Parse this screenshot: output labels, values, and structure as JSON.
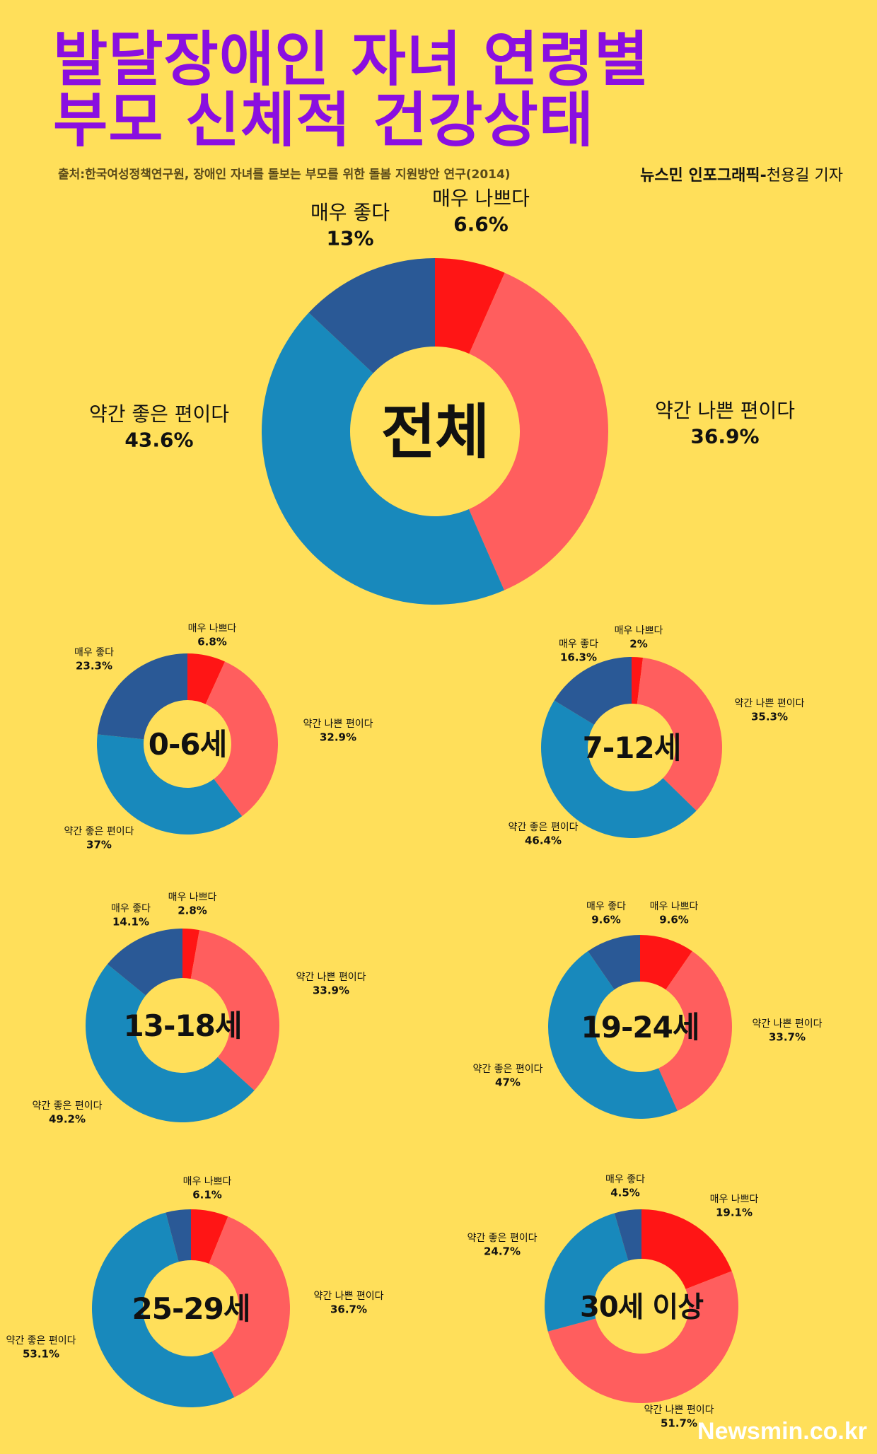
{
  "header": {
    "title_line1": "발달장애인 자녀 연령별",
    "title_line2": "부모 신체적 건강상태",
    "source": "출처:한국여성정책연구원, 장애인 자녀를 돌보는 부모를 위한 돌봄 지원방안 연구(2014)",
    "byline_org": "뉴스민 인포그래픽-",
    "byline_author": "천용길 기자"
  },
  "watermark": "Newsmin.co.kr",
  "colors": {
    "매우 나쁘다": "#FF1515",
    "약간 나쁜 편이다": "#FF5E5E",
    "약간 좋은 편이다": "#1889BC",
    "매우 좋다": "#2A5996",
    "background": "#FFDF5A",
    "title": "#8A0FE0"
  },
  "chart_data": [
    {
      "type": "pie",
      "center_label": "전체",
      "slices": [
        {
          "label": "매우 나쁘다",
          "value": 6.6,
          "display": "6.6%"
        },
        {
          "label": "약간 나쁜 편이다",
          "value": 36.9,
          "display": "36.9%"
        },
        {
          "label": "약간 좋은 편이다",
          "value": 43.6,
          "display": "43.6%"
        },
        {
          "label": "매우 좋다",
          "value": 13,
          "display": "13%"
        }
      ]
    },
    {
      "type": "pie",
      "center_label": "0-6세",
      "slices": [
        {
          "label": "매우 나쁘다",
          "value": 6.8,
          "display": "6.8%"
        },
        {
          "label": "약간 나쁜 편이다",
          "value": 32.9,
          "display": "32.9%"
        },
        {
          "label": "약간 좋은 편이다",
          "value": 37,
          "display": "37%"
        },
        {
          "label": "매우 좋다",
          "value": 23.3,
          "display": "23.3%"
        }
      ]
    },
    {
      "type": "pie",
      "center_label": "7-12세",
      "slices": [
        {
          "label": "매우 나쁘다",
          "value": 2,
          "display": "2%"
        },
        {
          "label": "약간 나쁜 편이다",
          "value": 35.3,
          "display": "35.3%"
        },
        {
          "label": "약간 좋은 편이다",
          "value": 46.4,
          "display": "46.4%"
        },
        {
          "label": "매우 좋다",
          "value": 16.3,
          "display": "16.3%"
        }
      ]
    },
    {
      "type": "pie",
      "center_label": "13-18세",
      "slices": [
        {
          "label": "매우 나쁘다",
          "value": 2.8,
          "display": "2.8%"
        },
        {
          "label": "약간 나쁜 편이다",
          "value": 33.9,
          "display": "33.9%"
        },
        {
          "label": "약간 좋은 편이다",
          "value": 49.2,
          "display": "49.2%"
        },
        {
          "label": "매우 좋다",
          "value": 14.1,
          "display": "14.1%"
        }
      ]
    },
    {
      "type": "pie",
      "center_label": "19-24세",
      "slices": [
        {
          "label": "매우 나쁘다",
          "value": 9.6,
          "display": "9.6%"
        },
        {
          "label": "약간 나쁜 편이다",
          "value": 33.7,
          "display": "33.7%"
        },
        {
          "label": "약간 좋은 편이다",
          "value": 47,
          "display": "47%"
        },
        {
          "label": "매우 좋다",
          "value": 9.6,
          "display": "9.6%"
        }
      ]
    },
    {
      "type": "pie",
      "center_label": "25-29세",
      "slices": [
        {
          "label": "매우 나쁘다",
          "value": 6.1,
          "display": "6.1%"
        },
        {
          "label": "약간 나쁜 편이다",
          "value": 36.7,
          "display": "36.7%"
        },
        {
          "label": "약간 좋은 편이다",
          "value": 53.1,
          "display": "53.1%"
        },
        {
          "label": "매우 좋다",
          "value": 4.1,
          "display": ""
        }
      ]
    },
    {
      "type": "pie",
      "center_label": "30세 이상",
      "slices": [
        {
          "label": "매우 나쁘다",
          "value": 19.1,
          "display": "19.1%"
        },
        {
          "label": "약간 나쁜 편이다",
          "value": 51.7,
          "display": "51.7%"
        },
        {
          "label": "약간 좋은 편이다",
          "value": 24.7,
          "display": "24.7%"
        },
        {
          "label": "매우 좋다",
          "value": 4.5,
          "display": "4.5%"
        }
      ]
    }
  ]
}
